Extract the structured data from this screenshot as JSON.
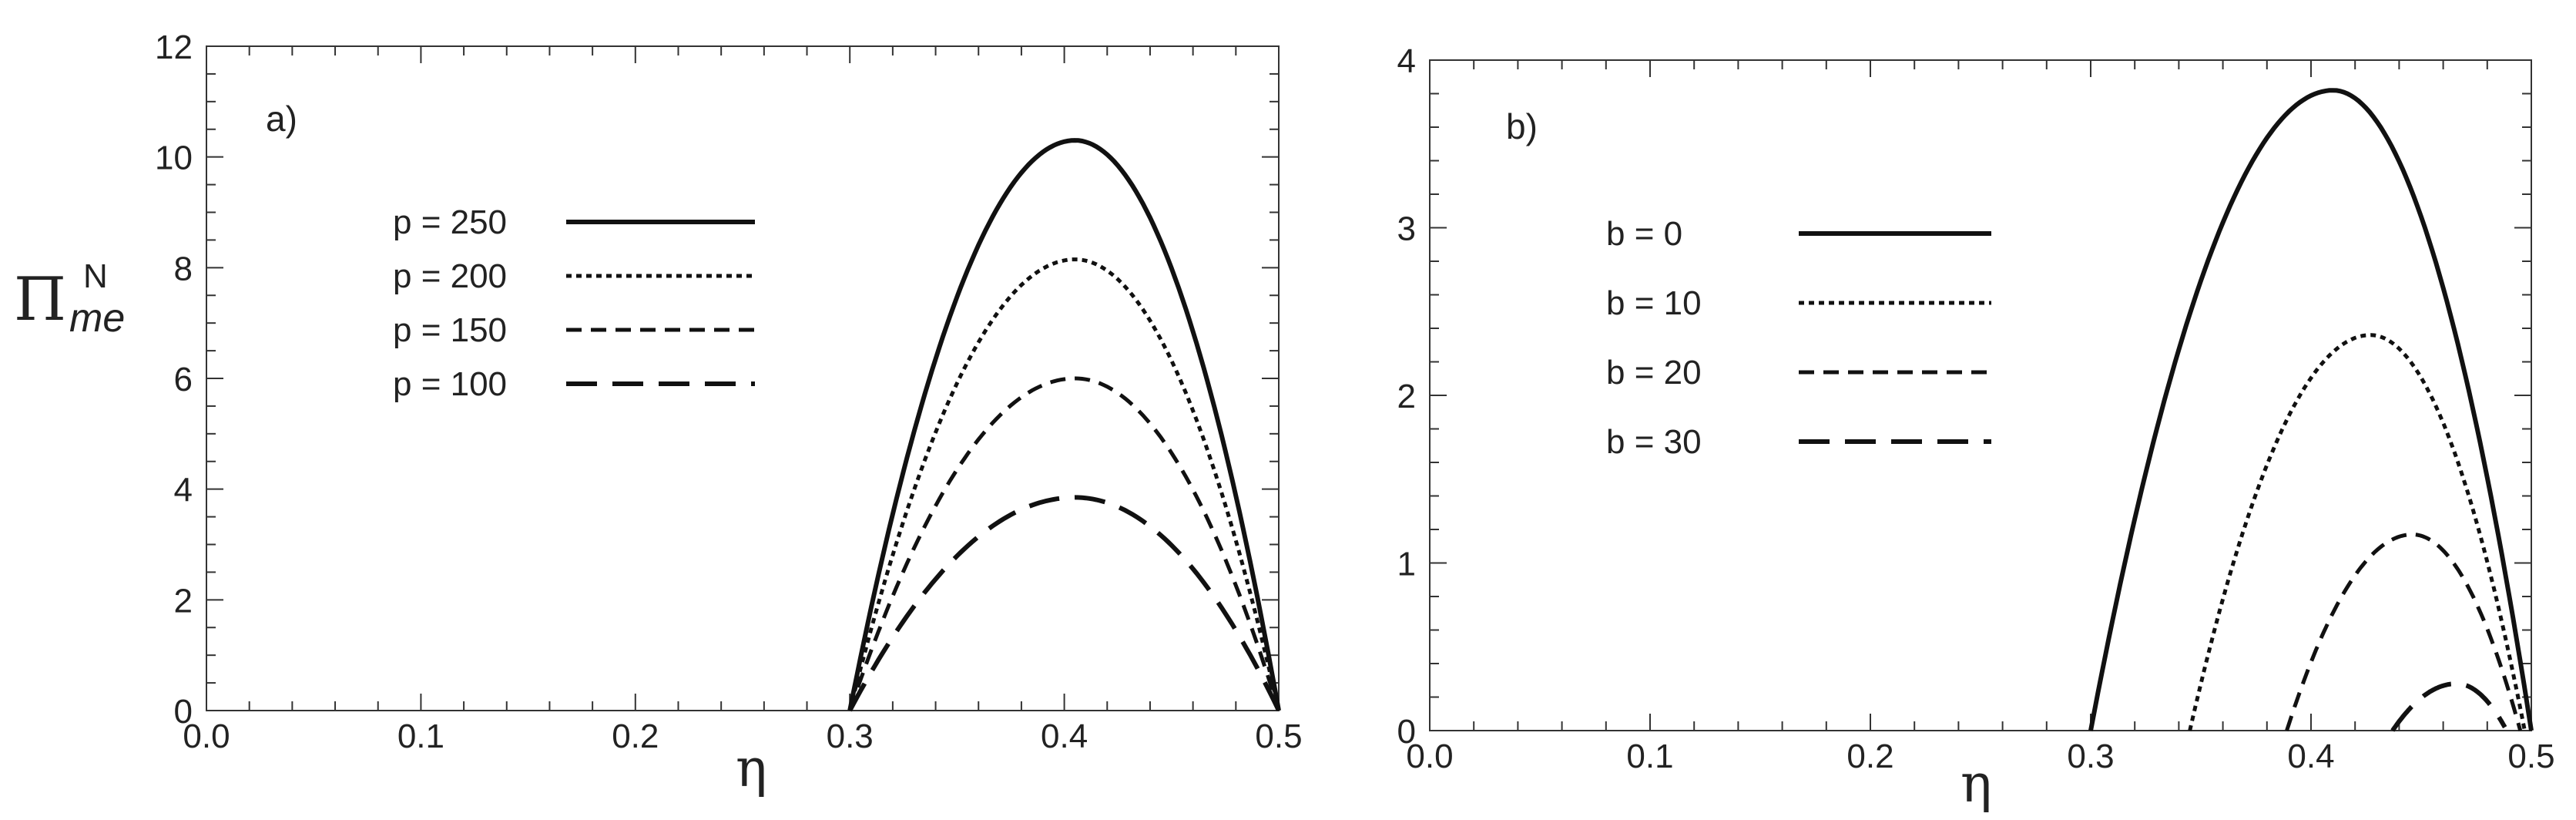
{
  "chart_data": [
    {
      "type": "line",
      "panel_label": "a)",
      "ylabel": {
        "main": "Π",
        "sub": "me",
        "sup": "N"
      },
      "xlabel": "η",
      "xlim": [
        0.0,
        0.5
      ],
      "ylim": [
        0,
        12
      ],
      "x_ticks": [
        "0.0",
        "0.1",
        "0.2",
        "0.3",
        "0.4",
        "0.5"
      ],
      "y_ticks": [
        "0",
        "2",
        "4",
        "6",
        "8",
        "10",
        "12"
      ],
      "grid": false,
      "legend_position": "upper-left",
      "series": [
        {
          "name": "p = 250",
          "style": "solid",
          "x_start": 0.3,
          "x_end": 0.5,
          "x_peak": 0.405,
          "y_peak": 10.3,
          "y_end": 0
        },
        {
          "name": "p = 200",
          "style": "dotted",
          "x_start": 0.3,
          "x_end": 0.5,
          "x_peak": 0.405,
          "y_peak": 8.15,
          "y_end": 0
        },
        {
          "name": "p = 150",
          "style": "dashed",
          "x_start": 0.3,
          "x_end": 0.5,
          "x_peak": 0.405,
          "y_peak": 6.0,
          "y_end": 0
        },
        {
          "name": "p = 100",
          "style": "long-dashed",
          "x_start": 0.3,
          "x_end": 0.5,
          "x_peak": 0.405,
          "y_peak": 3.85,
          "y_end": 0
        }
      ]
    },
    {
      "type": "line",
      "panel_label": "b)",
      "xlabel": "η",
      "xlim": [
        0.0,
        0.5
      ],
      "ylim": [
        0,
        4
      ],
      "x_ticks": [
        "0.0",
        "0.1",
        "0.2",
        "0.3",
        "0.4",
        "0.5"
      ],
      "y_ticks": [
        "0",
        "1",
        "2",
        "3",
        "4"
      ],
      "grid": false,
      "legend_position": "upper-left",
      "series": [
        {
          "name": "b = 0",
          "style": "solid",
          "x_start": 0.3,
          "x_end": 0.5,
          "x_peak": 0.41,
          "y_peak": 3.82,
          "y_end": 0
        },
        {
          "name": "b = 10",
          "style": "dotted",
          "x_start": 0.345,
          "x_end": 0.497,
          "x_peak": 0.427,
          "y_peak": 2.36,
          "y_end": 0
        },
        {
          "name": "b = 20",
          "style": "dashed",
          "x_start": 0.389,
          "x_end": 0.495,
          "x_peak": 0.446,
          "y_peak": 1.17,
          "y_end": 0
        },
        {
          "name": "b = 30",
          "style": "long-dashed",
          "x_start": 0.437,
          "x_end": 0.488,
          "x_peak": 0.466,
          "y_peak": 0.28,
          "y_end": 0.02
        }
      ]
    }
  ]
}
